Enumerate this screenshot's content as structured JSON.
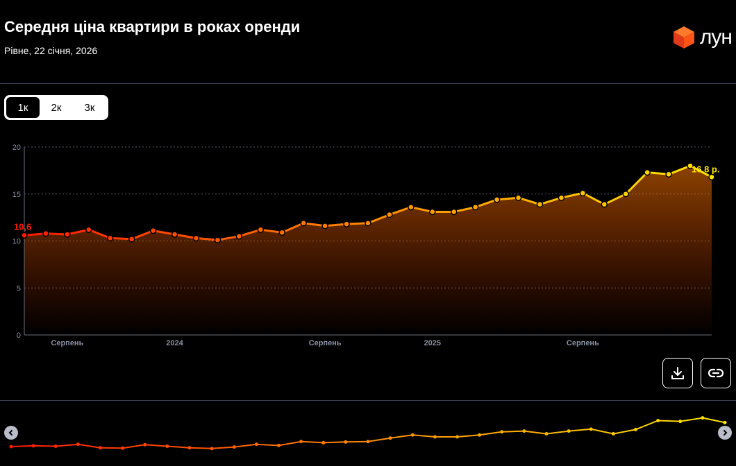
{
  "header": {
    "title": "Середня ціна квартири в роках оренди",
    "subtitle": "Рівне, 22 січня, 2026",
    "logo_text": "лун"
  },
  "tabs": [
    {
      "label": "1к",
      "active": true
    },
    {
      "label": "2к",
      "active": false
    },
    {
      "label": "3к",
      "active": false
    }
  ],
  "actions": {
    "download_icon": "download-icon",
    "link_icon": "link-icon"
  },
  "colors": {
    "start": "#ff1a00",
    "mid": "#ff8a00",
    "end": "#ffe600",
    "grid": "#555a66",
    "axis_text": "#8a90a3"
  },
  "chart_data": {
    "type": "line",
    "ylim": [
      0,
      20
    ],
    "yticks": [
      0,
      5,
      10,
      15,
      20
    ],
    "x": [
      "2023-06",
      "2023-07",
      "2023-08",
      "2023-09",
      "2023-10",
      "2023-11",
      "2023-12",
      "2024-01",
      "2024-02",
      "2024-03",
      "2024-04",
      "2024-05",
      "2024-06",
      "2024-07",
      "2024-08",
      "2024-09",
      "2024-10",
      "2024-11",
      "2024-12",
      "2025-01",
      "2025-02",
      "2025-03",
      "2025-04",
      "2025-05",
      "2025-06",
      "2025-07",
      "2025-08",
      "2025-09",
      "2025-10",
      "2025-11",
      "2025-12",
      "2026-01",
      "2026-01-22"
    ],
    "x_tick_labels": [
      {
        "x": "2023-08",
        "label": "Серпень"
      },
      {
        "x": "2024-01",
        "label": "2024"
      },
      {
        "x": "2024-08",
        "label": "Серпень"
      },
      {
        "x": "2025-01",
        "label": "2025"
      },
      {
        "x": "2025-08",
        "label": "Серпень"
      }
    ],
    "series": [
      {
        "values": [
          10.6,
          10.8,
          10.7,
          11.2,
          10.3,
          10.2,
          11.1,
          10.7,
          10.3,
          10.1,
          10.5,
          11.2,
          10.9,
          11.9,
          11.6,
          11.8,
          11.9,
          12.8,
          13.6,
          13.1,
          13.1,
          13.6,
          14.4,
          14.6,
          13.9,
          14.6,
          15.1,
          13.9,
          15.0,
          17.3,
          17.1,
          18.0,
          16.8
        ]
      }
    ],
    "first_label": "10,6",
    "last_label": "16,8 р.",
    "grid": true
  }
}
